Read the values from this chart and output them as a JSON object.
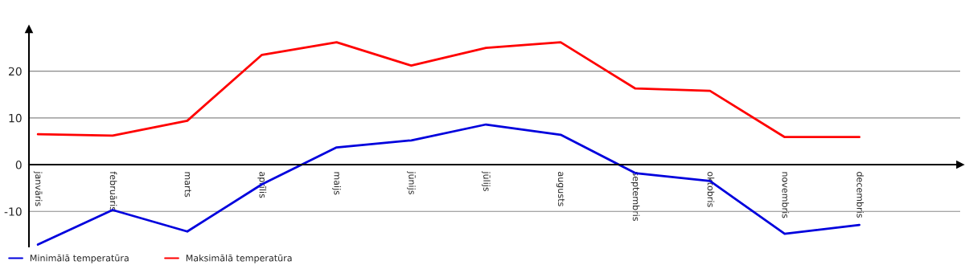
{
  "chart_data": {
    "type": "line",
    "categories": [
      "janvāris",
      "februāris",
      "marts",
      "aprīlis",
      "maijs",
      "jūnijs",
      "jūlijs",
      "augusts",
      "septembris",
      "oktobris",
      "novembris",
      "decembris"
    ],
    "series": [
      {
        "name": "Minimālā temperatūra",
        "color": "#0000dd",
        "values": [
          -17.1,
          -9.7,
          -14.3,
          -4.2,
          3.7,
          5.2,
          8.6,
          6.4,
          -1.8,
          -3.5,
          -14.8,
          -12.9
        ]
      },
      {
        "name": "Maksimālā temperatūra",
        "color": "#ff0000",
        "values": [
          6.5,
          6.2,
          9.4,
          23.5,
          26.2,
          21.2,
          25.0,
          26.2,
          16.3,
          15.8,
          5.9,
          5.9
        ]
      }
    ],
    "ylim": [
      -17.5,
      29
    ],
    "yticks": [
      -10,
      0,
      10,
      20
    ],
    "grid": "y",
    "legend": "bottom left",
    "marker": "none",
    "line_style": "solid"
  }
}
